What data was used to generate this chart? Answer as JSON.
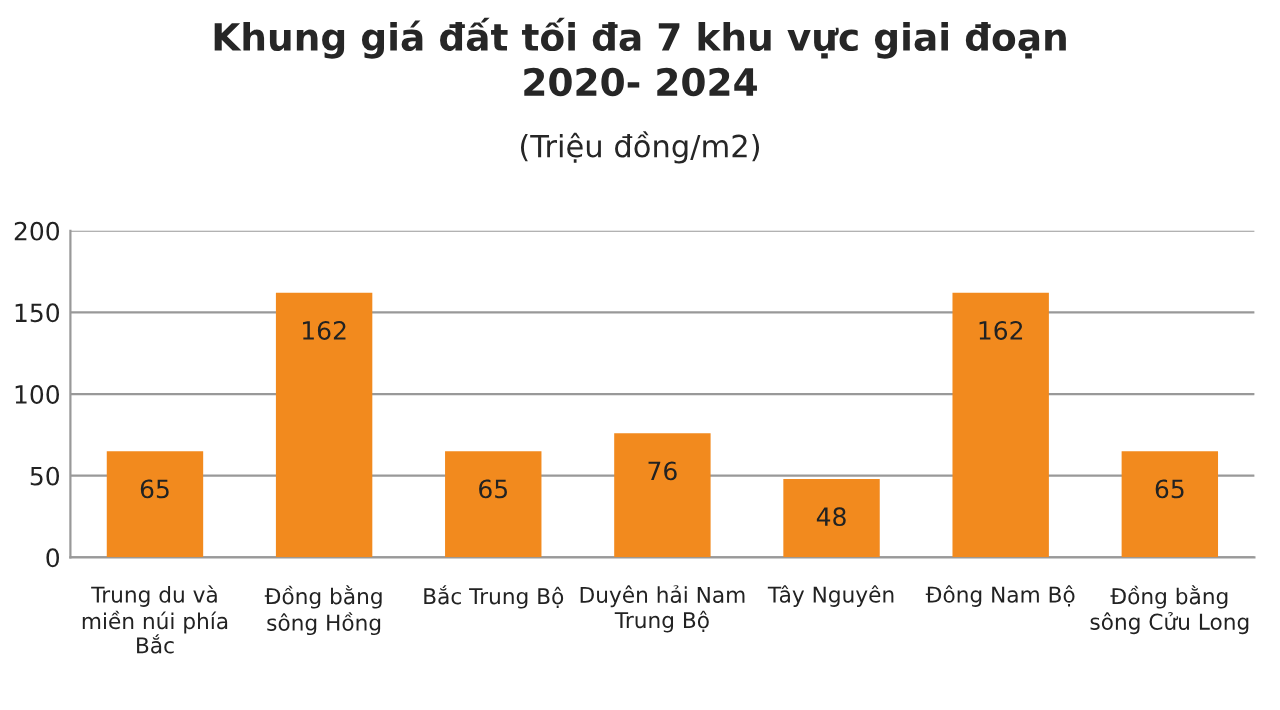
{
  "chart_data": {
    "type": "bar",
    "title": "Khung giá đất tối đa 7 khu vực giai đoạn\n2020- 2024",
    "subtitle": "(Triệu đồng/m2)",
    "categories": [
      "Trung du và\nmiền núi phía\nBắc",
      "Đồng bằng\nsông Hồng",
      "Bắc Trung Bộ",
      "Duyên hải Nam\nTrung Bộ",
      "Tây Nguyên",
      "Đông Nam Bộ",
      "Đồng bằng\nsông Cửu Long"
    ],
    "values": [
      65,
      162,
      65,
      76,
      48,
      162,
      65
    ],
    "color": "#f28a1e",
    "ylim": [
      0,
      200
    ],
    "yticks": [
      0,
      50,
      100,
      150,
      200
    ],
    "grid": "y",
    "data_labels": true
  }
}
